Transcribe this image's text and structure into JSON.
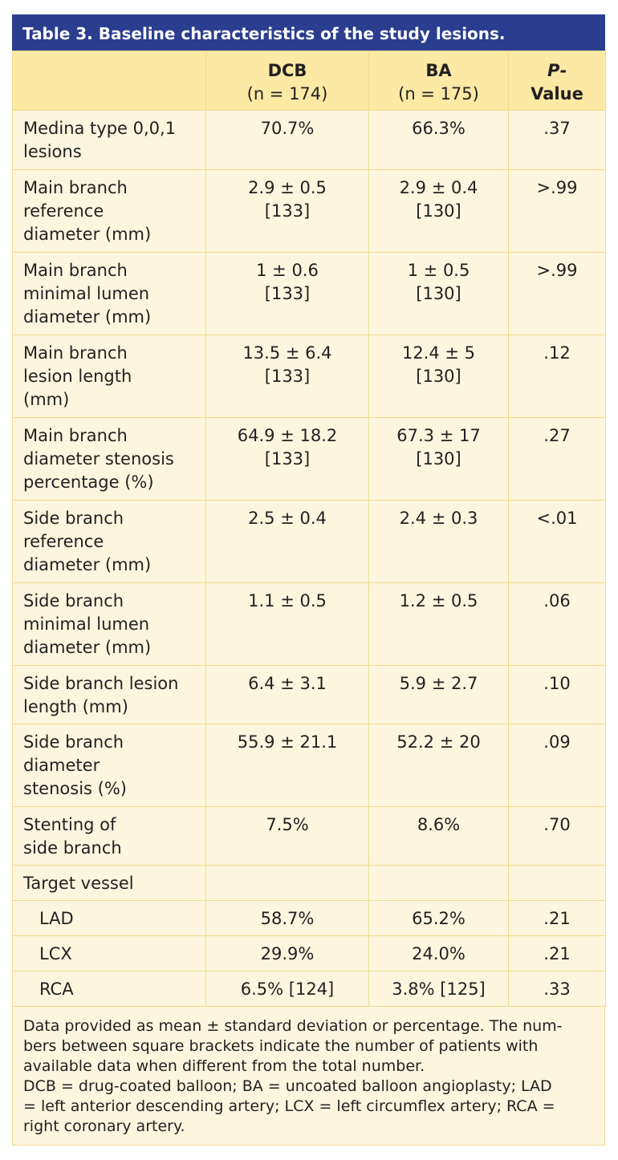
{
  "title": "Table 3. Baseline characteristics of the study lesions.",
  "headers": {
    "dcb": "DCB",
    "dcb_n": "(n = 174)",
    "ba": "BA",
    "ba_n": "(n = 175)",
    "p_italic": "P",
    "p_rest": "-",
    "p_line2": "Value"
  },
  "rows": [
    {
      "label": [
        "Medina type 0,0,1",
        "lesions"
      ],
      "dcb": [
        "70.7%"
      ],
      "ba": [
        "66.3%"
      ],
      "p": ".37"
    },
    {
      "label": [
        "Main branch",
        "reference",
        "diameter (mm)"
      ],
      "dcb": [
        "2.9 ± 0.5",
        "[133]"
      ],
      "ba": [
        "2.9 ± 0.4",
        "[130]"
      ],
      "p": ">.99"
    },
    {
      "label": [
        "Main branch",
        "minimal lumen",
        "diameter (mm)"
      ],
      "dcb": [
        "1 ± 0.6",
        "[133]"
      ],
      "ba": [
        "1 ± 0.5",
        "[130]"
      ],
      "p": ">.99"
    },
    {
      "label": [
        "Main branch",
        "lesion length",
        "(mm)"
      ],
      "dcb": [
        "13.5 ± 6.4",
        "[133]"
      ],
      "ba": [
        "12.4 ± 5",
        "[130]"
      ],
      "p": ".12"
    },
    {
      "label": [
        "Main branch",
        "diameter stenosis",
        "percentage (%)"
      ],
      "dcb": [
        "64.9 ± 18.2",
        "[133]"
      ],
      "ba": [
        "67.3 ± 17",
        "[130]"
      ],
      "p": ".27"
    },
    {
      "label": [
        "Side branch",
        "reference",
        "diameter (mm)"
      ],
      "dcb": [
        "2.5 ± 0.4"
      ],
      "ba": [
        "2.4 ± 0.3"
      ],
      "p": "<.01"
    },
    {
      "label": [
        "Side branch",
        "minimal lumen",
        "diameter (mm)"
      ],
      "dcb": [
        "1.1 ± 0.5"
      ],
      "ba": [
        "1.2 ± 0.5"
      ],
      "p": ".06"
    },
    {
      "label": [
        "Side branch lesion",
        "length (mm)"
      ],
      "dcb": [
        "6.4 ± 3.1"
      ],
      "ba": [
        "5.9 ± 2.7"
      ],
      "p": ".10"
    },
    {
      "label": [
        "Side branch",
        "diameter",
        "stenosis (%)"
      ],
      "dcb": [
        "55.9 ± 21.1"
      ],
      "ba": [
        "52.2 ± 20"
      ],
      "p": ".09"
    },
    {
      "label": [
        "Stenting of",
        "side branch"
      ],
      "dcb": [
        "7.5%"
      ],
      "ba": [
        "8.6%"
      ],
      "p": ".70"
    },
    {
      "label": [
        "Target vessel"
      ],
      "dcb": [
        ""
      ],
      "ba": [
        ""
      ],
      "p": ""
    },
    {
      "label": [
        "LAD"
      ],
      "dcb": [
        "58.7%"
      ],
      "ba": [
        "65.2%"
      ],
      "p": ".21",
      "sub": true
    },
    {
      "label": [
        "LCX"
      ],
      "dcb": [
        "29.9%"
      ],
      "ba": [
        "24.0%"
      ],
      "p": ".21",
      "sub": true
    },
    {
      "label": [
        "RCA"
      ],
      "dcb": [
        "6.5% [124]"
      ],
      "ba": [
        "3.8% [125]"
      ],
      "p": ".33",
      "sub": true
    }
  ],
  "footnote": [
    "Data provided as mean ± standard deviation or percentage. The num-",
    "bers between square brackets indicate the number of patients with",
    "available data when different from the total number.",
    "DCB = drug-coated balloon; BA = uncoated balloon angioplasty; LAD",
    "= left anterior descending artery; LCX = left circumflex artery; RCA =",
    "right coronary artery."
  ]
}
